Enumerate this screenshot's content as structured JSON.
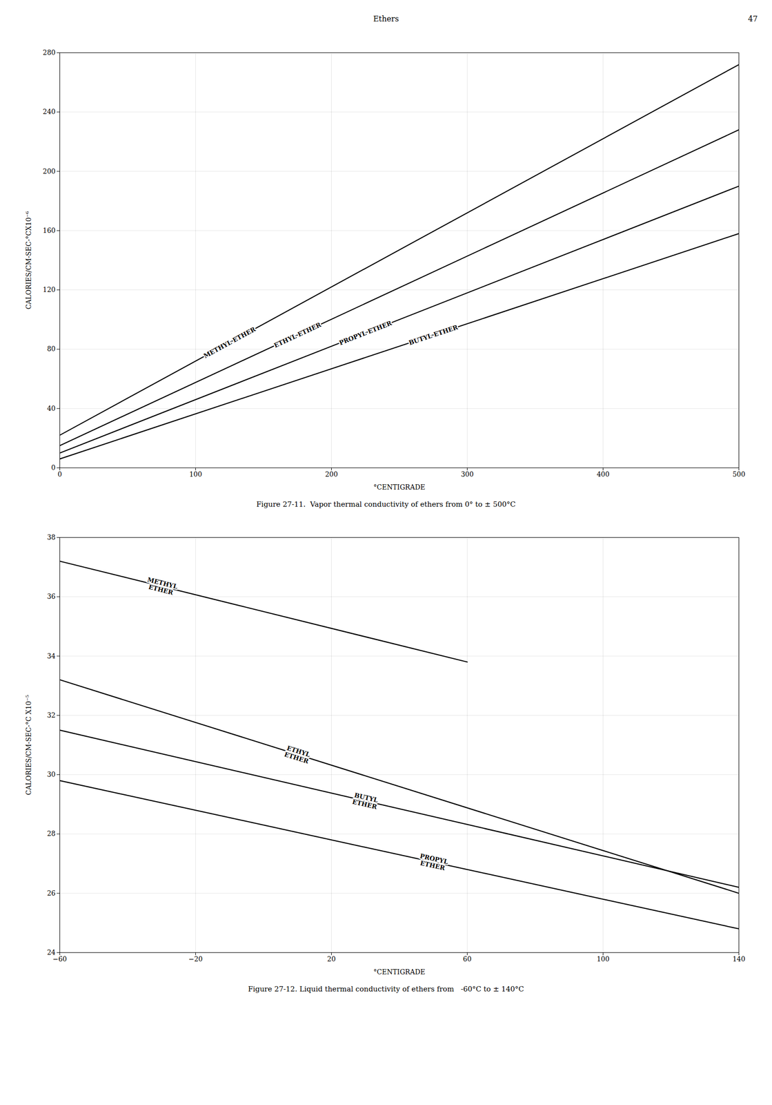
{
  "chart_data": [
    {
      "type": "line",
      "title": "Figure 27-11.  Vapor thermal conductivity of ethers from 0° to ± 500°C",
      "annotations": [
        "Ethers",
        "47"
      ],
      "xlabel": "°CENTIGRADE",
      "ylabel": "CALORIES/CM-SEC-°CX10⁻⁶",
      "xlim": [
        0,
        500
      ],
      "ylim": [
        0,
        280
      ],
      "xticks": [
        0,
        100,
        200,
        300,
        400,
        500
      ],
      "yticks": [
        0,
        40,
        80,
        120,
        160,
        200,
        240,
        280
      ],
      "grid": true,
      "color": "#000000",
      "series": [
        {
          "name": "METHYL ETHER",
          "x": [
            0,
            500
          ],
          "values": [
            22,
            272
          ]
        },
        {
          "name": "ETHYL ETHER",
          "x": [
            0,
            500
          ],
          "values": [
            15,
            228
          ]
        },
        {
          "name": "PROPYL ETHER",
          "x": [
            0,
            500
          ],
          "values": [
            10,
            190
          ]
        },
        {
          "name": "BUTYL ETHER",
          "x": [
            0,
            500
          ],
          "values": [
            6,
            158
          ]
        }
      ]
    },
    {
      "type": "line",
      "title": "Figure 27-12. Liquid thermal conductivity of ethers from   -60°C to ± 140°C",
      "xlabel": "°CENTIGRADE",
      "ylabel": "CALORIES/CM-SEC-°C X10⁻⁵",
      "xlim": [
        -60,
        140
      ],
      "ylim": [
        24,
        38
      ],
      "xticks": [
        -60,
        -20,
        20,
        60,
        100,
        140
      ],
      "yticks": [
        24,
        26,
        28,
        30,
        32,
        34,
        36,
        38
      ],
      "grid": true,
      "color": "#000000",
      "series": [
        {
          "name": "METHYL\nETHER",
          "x": [
            -60,
            60
          ],
          "values": [
            37.2,
            33.8
          ]
        },
        {
          "name": "ETHYL\nETHER",
          "x": [
            -60,
            140
          ],
          "values": [
            33.2,
            26.0
          ]
        },
        {
          "name": "BUTYL\nETHER",
          "x": [
            -60,
            140
          ],
          "values": [
            31.5,
            26.2
          ]
        },
        {
          "name": "PROPYL\nETHER",
          "x": [
            -60,
            140
          ],
          "values": [
            29.8,
            24.8
          ]
        }
      ]
    }
  ]
}
